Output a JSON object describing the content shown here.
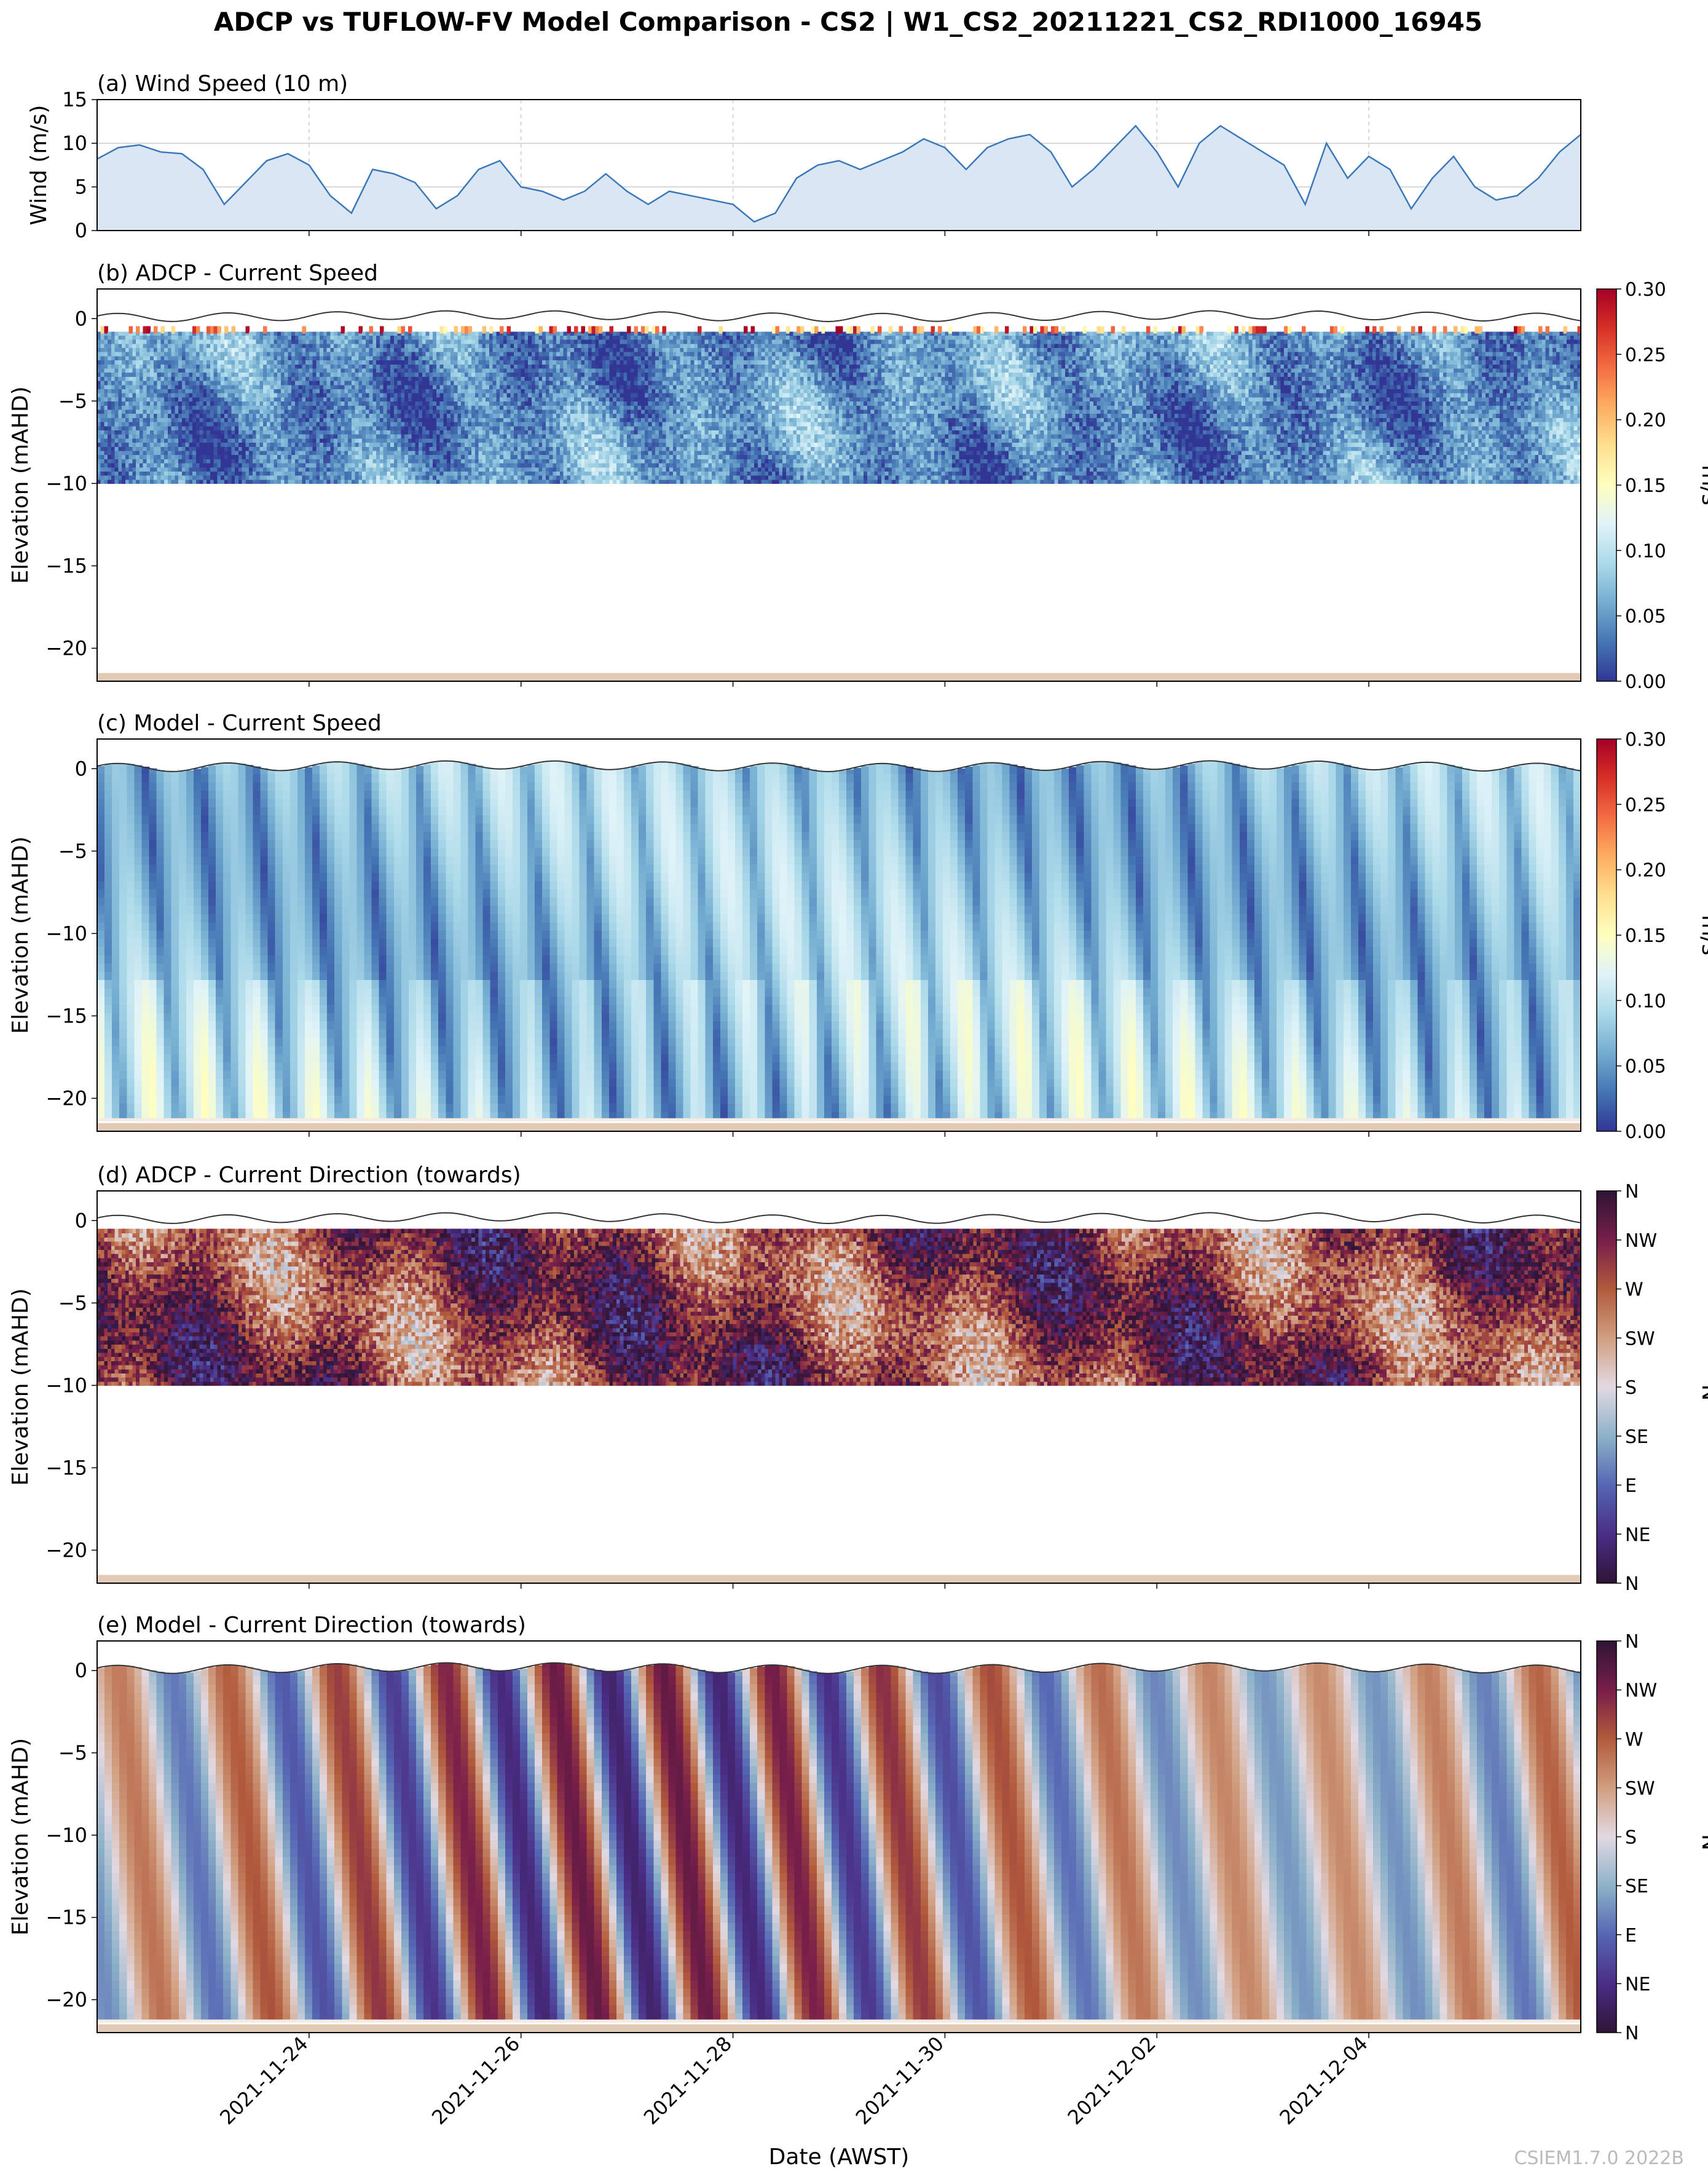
{
  "figure": {
    "title": "ADCP vs TUFLOW-FV Model Comparison - CS2 | W1_CS2_20211221_CS2_RDI1000_16945",
    "xlabel": "Date (AWST)",
    "watermark": "CSIEM1.7.0 2022B",
    "x_ticks": [
      "2021-11-24",
      "2021-11-26",
      "2021-11-28",
      "2021-11-30",
      "2021-12-02",
      "2021-12-04"
    ],
    "x_range_days": [
      -2.0,
      12.0
    ]
  },
  "chart_data": [
    {
      "id": "a",
      "type": "area",
      "title": "(a) Wind Speed (10 m)",
      "ylabel": "Wind (m/s)",
      "ylim": [
        0,
        15
      ],
      "y_ticks": [
        0,
        5,
        10,
        15
      ],
      "color": "#3a78b8",
      "fill": "#dae6f4",
      "x_days": [
        -2.0,
        -1.8,
        -1.6,
        -1.4,
        -1.2,
        -1.0,
        -0.8,
        -0.6,
        -0.4,
        -0.2,
        0.0,
        0.2,
        0.4,
        0.6,
        0.8,
        1.0,
        1.2,
        1.4,
        1.6,
        1.8,
        2.0,
        2.2,
        2.4,
        2.6,
        2.8,
        3.0,
        3.2,
        3.4,
        3.6,
        3.8,
        4.0,
        4.2,
        4.4,
        4.6,
        4.8,
        5.0,
        5.2,
        5.4,
        5.6,
        5.8,
        6.0,
        6.2,
        6.4,
        6.6,
        6.8,
        7.0,
        7.2,
        7.4,
        7.6,
        7.8,
        8.0,
        8.2,
        8.4,
        8.6,
        8.8,
        9.0,
        9.2,
        9.4,
        9.6,
        9.8,
        10.0,
        10.2,
        10.4,
        10.6,
        10.8,
        11.0,
        11.2,
        11.4,
        11.6,
        11.8,
        12.0
      ],
      "values": [
        8.2,
        9.5,
        9.8,
        9.0,
        8.8,
        7.0,
        3.0,
        5.5,
        8.0,
        8.8,
        7.5,
        4.0,
        2.0,
        7.0,
        6.5,
        5.5,
        2.5,
        4.0,
        7.0,
        8.0,
        5.0,
        4.5,
        3.5,
        4.5,
        6.5,
        4.5,
        3.0,
        4.5,
        4.0,
        3.5,
        3.0,
        1.0,
        2.0,
        6.0,
        7.5,
        8.0,
        7.0,
        8.0,
        9.0,
        10.5,
        9.5,
        7.0,
        9.5,
        10.5,
        11.0,
        9.0,
        5.0,
        7.0,
        9.5,
        12.0,
        9.0,
        5.0,
        10.0,
        12.0,
        10.5,
        9.0,
        7.5,
        3.0,
        10.0,
        6.0,
        8.5,
        7.0,
        2.5,
        6.0,
        8.5,
        5.0,
        3.5,
        4.0,
        6.0,
        9.0,
        11.0
      ]
    },
    {
      "id": "b",
      "type": "heatmap",
      "title": "(b) ADCP - Current Speed",
      "ylabel": "Elevation (mAHD)",
      "ylim": [
        -22,
        1.8
      ],
      "y_ticks": [
        0,
        -5,
        -10,
        -15,
        -20
      ],
      "colorbar": {
        "label": "m/s",
        "min": 0,
        "max": 0.3,
        "ticks": [
          "0.00",
          "0.05",
          "0.10",
          "0.15",
          "0.20",
          "0.25",
          "0.30"
        ]
      },
      "colormap": "RdYlBu_r",
      "data_depth_range": [
        -10,
        -0.8
      ],
      "seabed_elevation": -21.5
    },
    {
      "id": "c",
      "type": "heatmap",
      "title": "(c) Model - Current Speed",
      "ylabel": "Elevation (mAHD)",
      "ylim": [
        -22,
        1.8
      ],
      "y_ticks": [
        0,
        -5,
        -10,
        -15,
        -20
      ],
      "colorbar": {
        "label": "m/s",
        "min": 0,
        "max": 0.3,
        "ticks": [
          "0.00",
          "0.05",
          "0.10",
          "0.15",
          "0.20",
          "0.25",
          "0.30"
        ]
      },
      "colormap": "RdYlBu_r",
      "data_depth_range": [
        -21.3,
        0.2
      ],
      "seabed_elevation": -21.5
    },
    {
      "id": "d",
      "type": "heatmap",
      "title": "(d) ADCP - Current Direction (towards)",
      "ylabel": "Elevation (mAHD)",
      "ylim": [
        -22,
        1.8
      ],
      "y_ticks": [
        0,
        -5,
        -10,
        -15,
        -20
      ],
      "colorbar": {
        "label": "°N",
        "min": 0,
        "max": 360,
        "ticks": [
          "N",
          "NE",
          "E",
          "SE",
          "S",
          "SW",
          "W",
          "NW",
          "N"
        ]
      },
      "colormap": "twilight_shifted",
      "data_depth_range": [
        -10,
        -0.5
      ],
      "seabed_elevation": -21.5
    },
    {
      "id": "e",
      "type": "heatmap",
      "title": "(e) Model - Current Direction (towards)",
      "ylabel": "Elevation (mAHD)",
      "ylim": [
        -22,
        1.8
      ],
      "y_ticks": [
        0,
        -5,
        -10,
        -15,
        -20
      ],
      "colorbar": {
        "label": "°N",
        "min": 0,
        "max": 360,
        "ticks": [
          "N",
          "NE",
          "E",
          "SE",
          "S",
          "SW",
          "W",
          "NW",
          "N"
        ]
      },
      "colormap": "twilight_shifted",
      "data_depth_range": [
        -21.3,
        0.2
      ],
      "seabed_elevation": -21.5
    }
  ]
}
